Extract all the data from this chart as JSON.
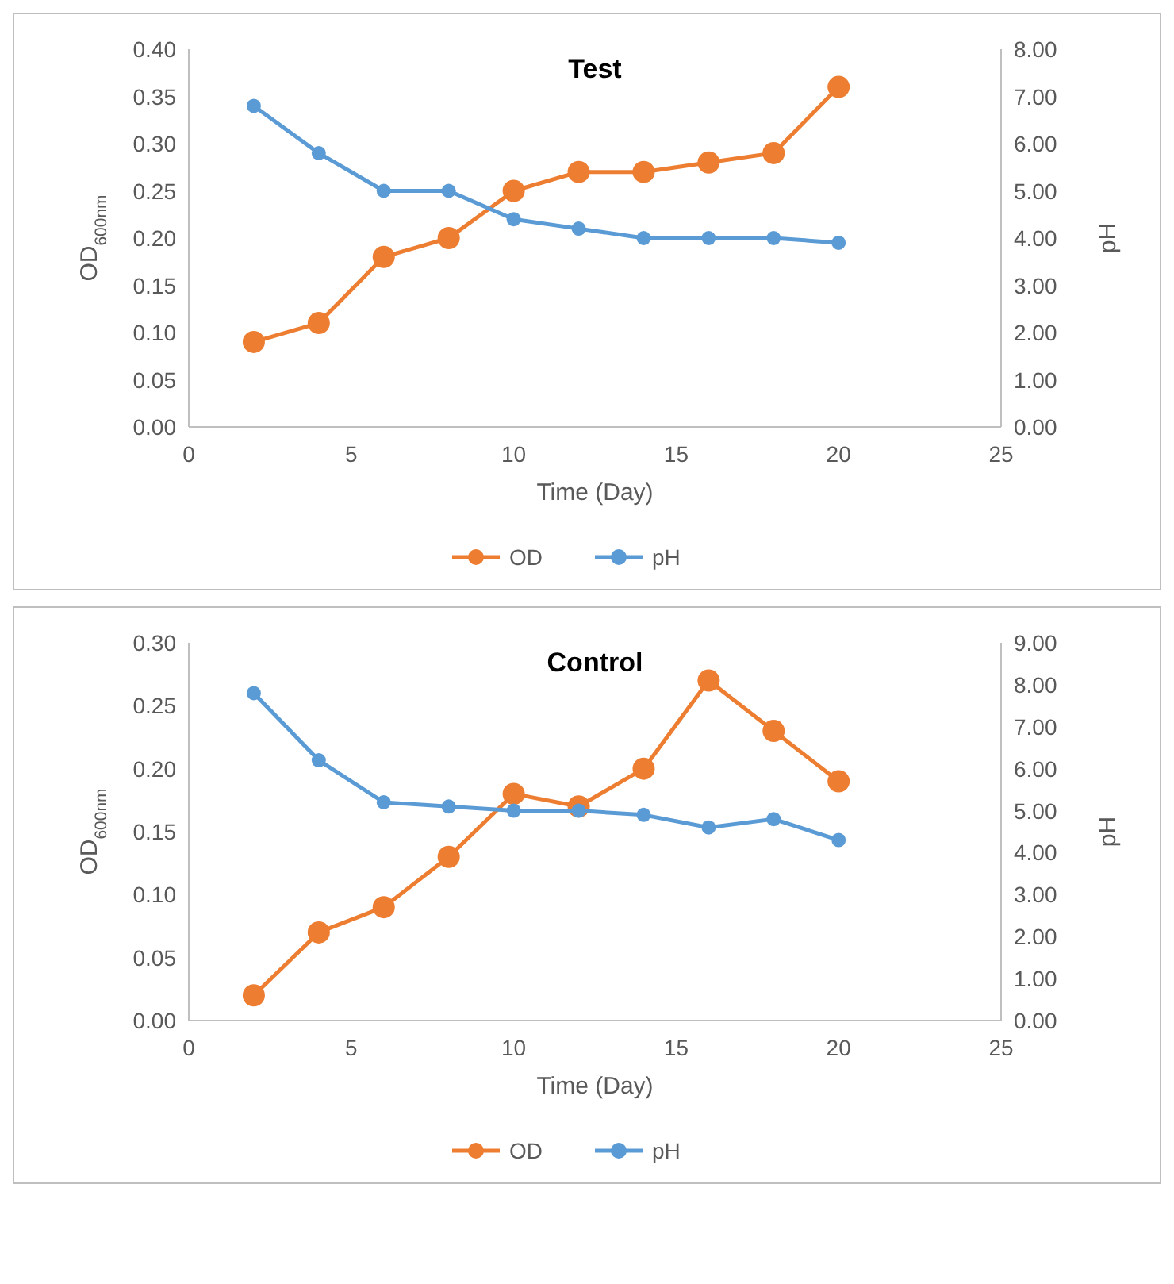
{
  "chart_data": [
    {
      "type": "line",
      "title": "Test",
      "xlabel": "Time (Day)",
      "ylabel": "OD$_{600nm}$",
      "y2label": "pH",
      "x": [
        2,
        4,
        6,
        8,
        10,
        12,
        14,
        16,
        18,
        20
      ],
      "xlim": [
        0,
        25
      ],
      "xticks": [
        0,
        5,
        10,
        15,
        20,
        25
      ],
      "ylim": [
        0,
        0.4
      ],
      "yticks": [
        {
          "value": 0,
          "label": "0.00"
        },
        {
          "value": 0.05,
          "label": "0.05"
        },
        {
          "value": 0.1,
          "label": "0.10"
        },
        {
          "value": 0.15,
          "label": "0.15"
        },
        {
          "value": 0.2,
          "label": "0.20"
        },
        {
          "value": 0.25,
          "label": "0.25"
        },
        {
          "value": 0.3,
          "label": "0.30"
        },
        {
          "value": 0.35,
          "label": "0.35"
        },
        {
          "value": 0.4,
          "label": "0.40"
        }
      ],
      "y2lim": [
        0,
        8
      ],
      "y2ticks": [
        {
          "value": 0,
          "label": "0.00"
        },
        {
          "value": 1,
          "label": "1.00"
        },
        {
          "value": 2,
          "label": "2.00"
        },
        {
          "value": 3,
          "label": "3.00"
        },
        {
          "value": 4,
          "label": "4.00"
        },
        {
          "value": 5,
          "label": "5.00"
        },
        {
          "value": 6,
          "label": "6.00"
        },
        {
          "value": 7,
          "label": "7.00"
        },
        {
          "value": 8,
          "label": "8.00"
        }
      ],
      "marker": "circle",
      "legend": "bottom",
      "grid": false,
      "series": [
        {
          "name": "OD",
          "color": "#ed7d31",
          "values": [
            0.09,
            0.11,
            0.18,
            0.2,
            0.25,
            0.27,
            0.27,
            0.28,
            0.29,
            0.36
          ]
        },
        {
          "name": "pH",
          "color": "#5b9bd5",
          "axis": "y2",
          "values": [
            6.8,
            5.8,
            5.0,
            5.0,
            4.4,
            4.2,
            4.0,
            4.0,
            4.0,
            3.9
          ]
        }
      ]
    },
    {
      "type": "line",
      "title": "Control",
      "xlabel": "Time (Day)",
      "ylabel": "OD$_{600nm}$",
      "y2label": "pH",
      "x": [
        2,
        4,
        6,
        8,
        10,
        12,
        14,
        16,
        18,
        20
      ],
      "xlim": [
        0,
        25
      ],
      "xticks": [
        0,
        5,
        10,
        15,
        20,
        25
      ],
      "ylim": [
        0,
        0.3
      ],
      "yticks": [
        {
          "value": 0,
          "label": "0.00"
        },
        {
          "value": 0.05,
          "label": "0.05"
        },
        {
          "value": 0.1,
          "label": "0.10"
        },
        {
          "value": 0.15,
          "label": "0.15"
        },
        {
          "value": 0.2,
          "label": "0.20"
        },
        {
          "value": 0.25,
          "label": "0.25"
        },
        {
          "value": 0.3,
          "label": "0.30"
        }
      ],
      "y2lim": [
        0,
        9
      ],
      "y2ticks": [
        {
          "value": 0,
          "label": "0.00"
        },
        {
          "value": 1,
          "label": "1.00"
        },
        {
          "value": 2,
          "label": "2.00"
        },
        {
          "value": 3,
          "label": "3.00"
        },
        {
          "value": 4,
          "label": "4.00"
        },
        {
          "value": 5,
          "label": "5.00"
        },
        {
          "value": 6,
          "label": "6.00"
        },
        {
          "value": 7,
          "label": "7.00"
        },
        {
          "value": 8,
          "label": "8.00"
        },
        {
          "value": 9,
          "label": "9.00"
        }
      ],
      "marker": "circle",
      "legend": "bottom",
      "grid": false,
      "series": [
        {
          "name": "OD",
          "color": "#ed7d31",
          "values": [
            0.02,
            0.07,
            0.09,
            0.13,
            0.18,
            0.17,
            0.2,
            0.27,
            0.23,
            0.19
          ]
        },
        {
          "name": "pH",
          "color": "#5b9bd5",
          "axis": "y2",
          "values": [
            7.8,
            6.2,
            5.2,
            5.1,
            5.0,
            5.0,
            4.9,
            4.6,
            4.8,
            4.3
          ]
        }
      ]
    }
  ]
}
